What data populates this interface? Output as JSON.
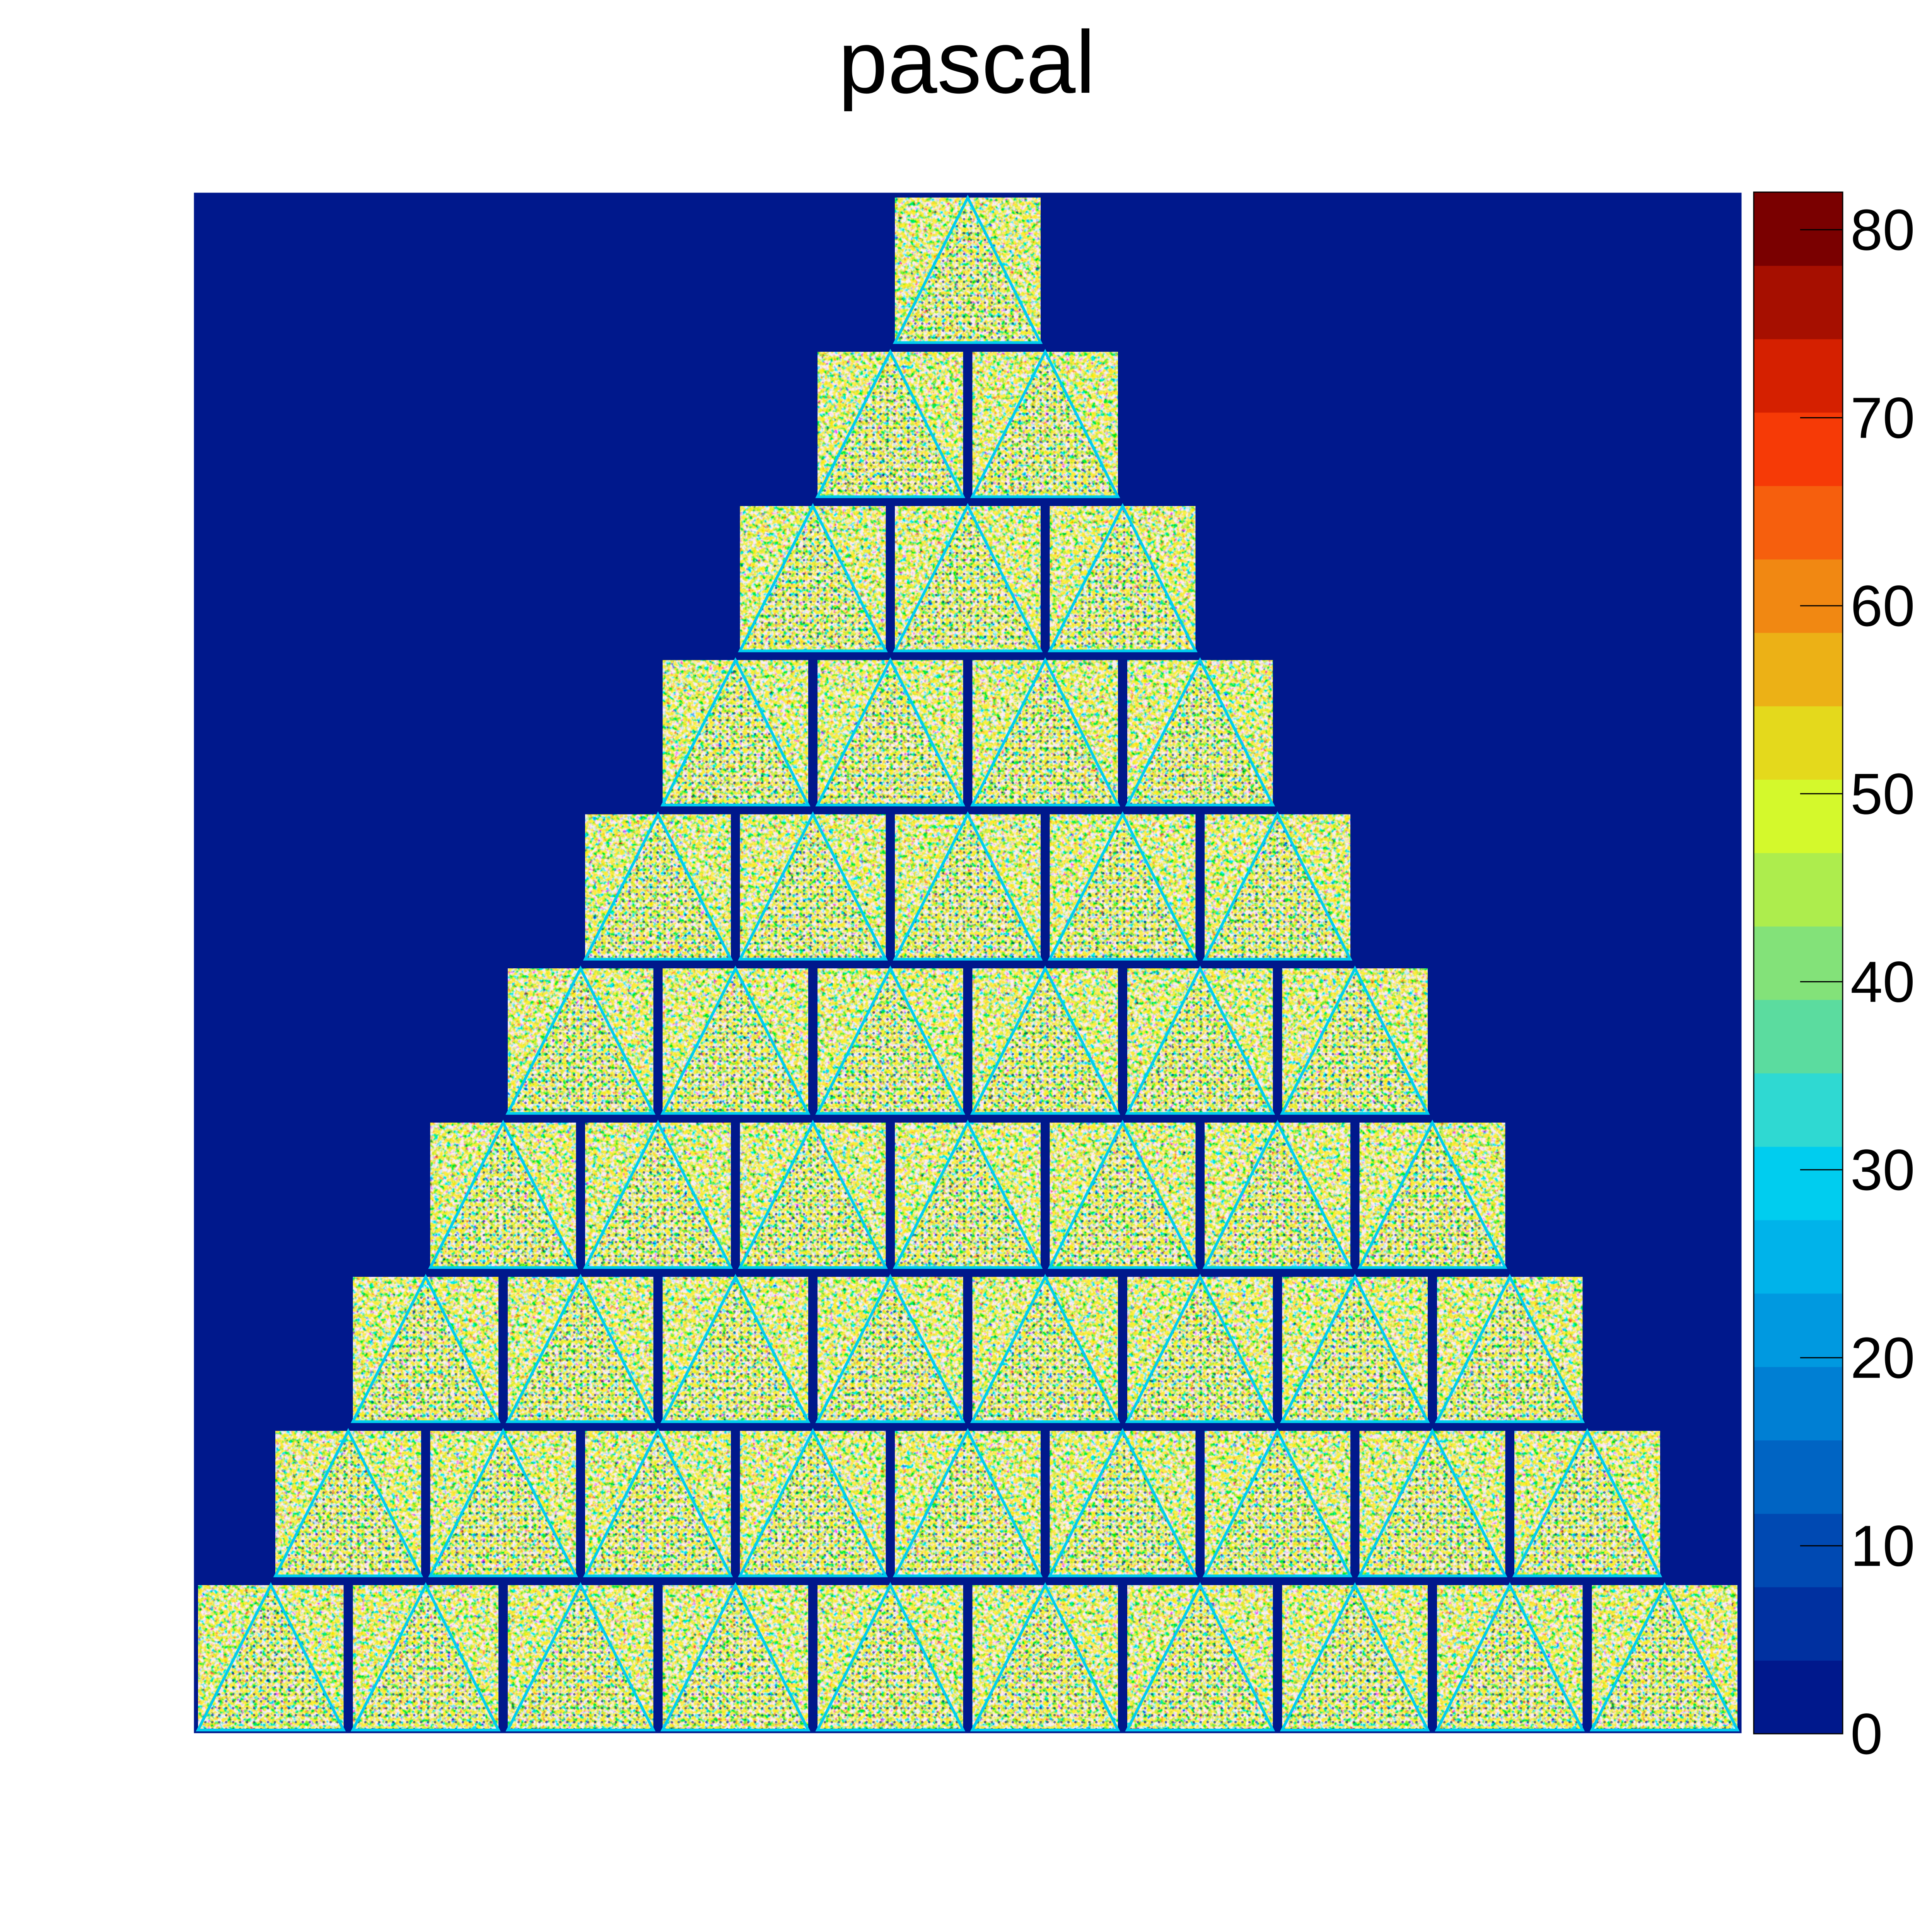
{
  "chart_data": {
    "type": "heatmap",
    "title": "pascal",
    "xlabel": "",
    "ylabel": "",
    "grid": false,
    "pattern": {
      "description_free": true,
      "triangle_rows": 10,
      "triangles_per_row": [
        1,
        2,
        3,
        4,
        5,
        6,
        7,
        8,
        9,
        10
      ],
      "background_value": 0,
      "edge_value": 30
    },
    "colorbar": {
      "min": 0,
      "max": 82,
      "ticks": [
        0,
        10,
        20,
        30,
        40,
        50,
        60,
        70,
        80
      ],
      "tick_labels": [
        "0",
        "10",
        "20",
        "30",
        "40",
        "50",
        "60",
        "70",
        "80"
      ],
      "levels": 20,
      "colors": [
        "#00188c",
        "#0030a0",
        "#0049b2",
        "#0064c3",
        "#007fd3",
        "#0099e0",
        "#00b3ea",
        "#00cdef",
        "#2fd9d2",
        "#5bdc9f",
        "#83e279",
        "#aded4d",
        "#d4f92c",
        "#e4d91c",
        "#ecb116",
        "#f18812",
        "#f65f0d",
        "#f63a06",
        "#d52000",
        "#a60f00",
        "#7a0000"
      ]
    }
  }
}
